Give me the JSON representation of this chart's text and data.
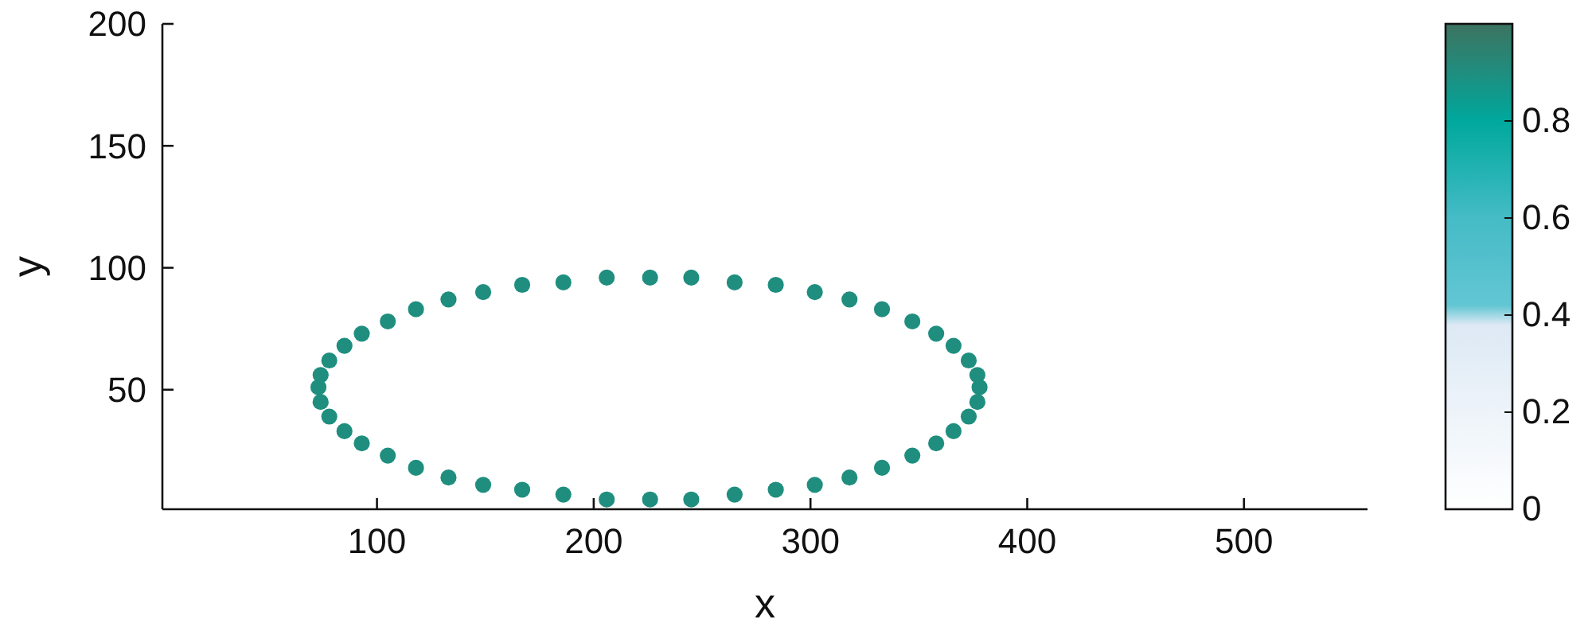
{
  "chart_data": {
    "type": "scatter",
    "xlabel": "x",
    "ylabel": "y",
    "xlim": [
      1,
      557
    ],
    "ylim": [
      1,
      200
    ],
    "xticks": [
      100,
      200,
      300,
      400,
      500
    ],
    "yticks": [
      50,
      100,
      150,
      200
    ],
    "clim": [
      0,
      1
    ],
    "cticks": [
      0,
      0.2,
      0.4,
      0.6,
      0.8
    ],
    "series": [
      {
        "marker": "circle",
        "x": [
          378,
          377,
          373,
          366,
          358,
          347,
          333,
          318,
          302,
          284,
          265,
          245,
          226,
          206,
          186,
          167,
          149,
          133,
          118,
          105,
          93,
          85,
          78,
          74,
          73,
          74,
          78,
          85,
          93,
          105,
          118,
          133,
          149,
          167,
          186,
          206,
          226,
          245,
          265,
          284,
          302,
          318,
          333,
          347,
          358,
          366,
          373,
          377
        ],
        "values": [
          51,
          56,
          62,
          68,
          73,
          78,
          83,
          87,
          90,
          93,
          94,
          96,
          96,
          96,
          94,
          93,
          90,
          87,
          83,
          78,
          73,
          68,
          62,
          56,
          51,
          45,
          39,
          33,
          28,
          23,
          18,
          14,
          11,
          9,
          7,
          5,
          5,
          5,
          7,
          9,
          11,
          14,
          18,
          23,
          28,
          33,
          39,
          45
        ],
        "cvalues": [
          0.9,
          0.9,
          0.9,
          0.9,
          0.9,
          0.9,
          0.9,
          0.9,
          0.9,
          0.9,
          0.9,
          0.9,
          0.9,
          0.9,
          0.9,
          0.9,
          0.9,
          0.9,
          0.9,
          0.9,
          0.9,
          0.9,
          0.9,
          0.9,
          0.9,
          0.9,
          0.9,
          0.9,
          0.9,
          0.9,
          0.9,
          0.9,
          0.9,
          0.9,
          0.9,
          0.9,
          0.9,
          0.9,
          0.9,
          0.9,
          0.9,
          0.9,
          0.9,
          0.9,
          0.9,
          0.9,
          0.9,
          0.9
        ]
      }
    ]
  }
}
